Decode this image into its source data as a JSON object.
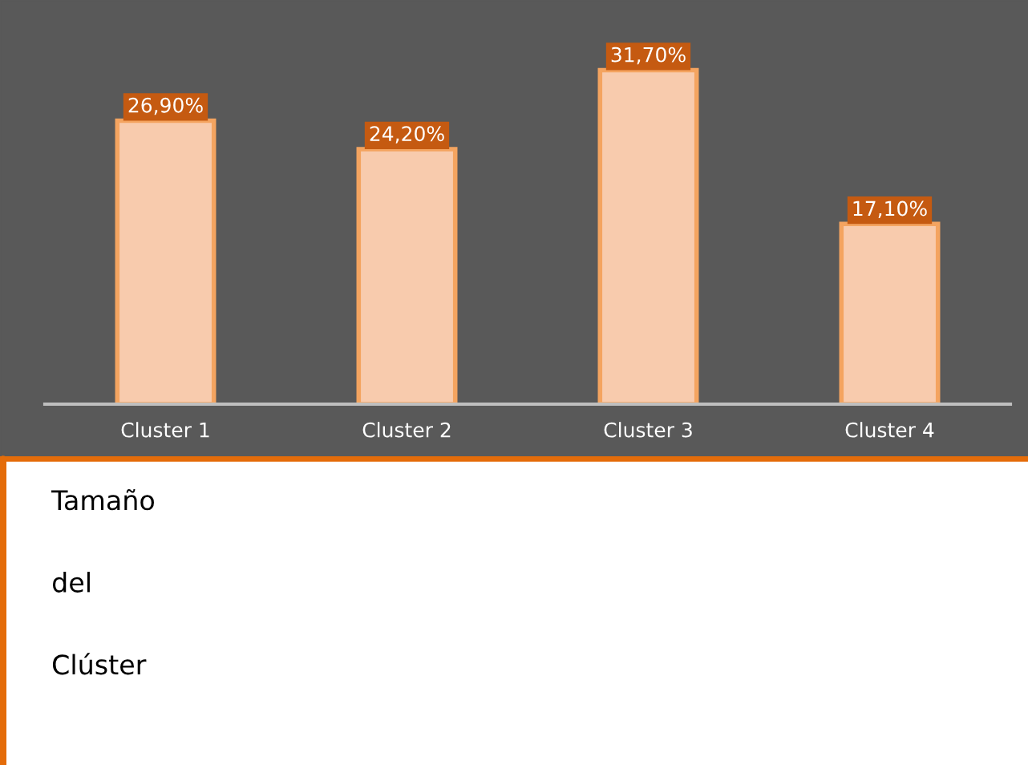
{
  "chart_data": {
    "type": "bar",
    "title": "Tamaño del Clúster",
    "categories": [
      "Cluster 1",
      "Cluster 2",
      "Cluster 3",
      "Cluster 4"
    ],
    "values": [
      26.9,
      24.2,
      31.7,
      17.1
    ],
    "value_labels": [
      "26,90%",
      "24,20%",
      "31,70%",
      "17,10%"
    ],
    "color": "#f8cbad",
    "grid": false,
    "legend": false
  }
}
